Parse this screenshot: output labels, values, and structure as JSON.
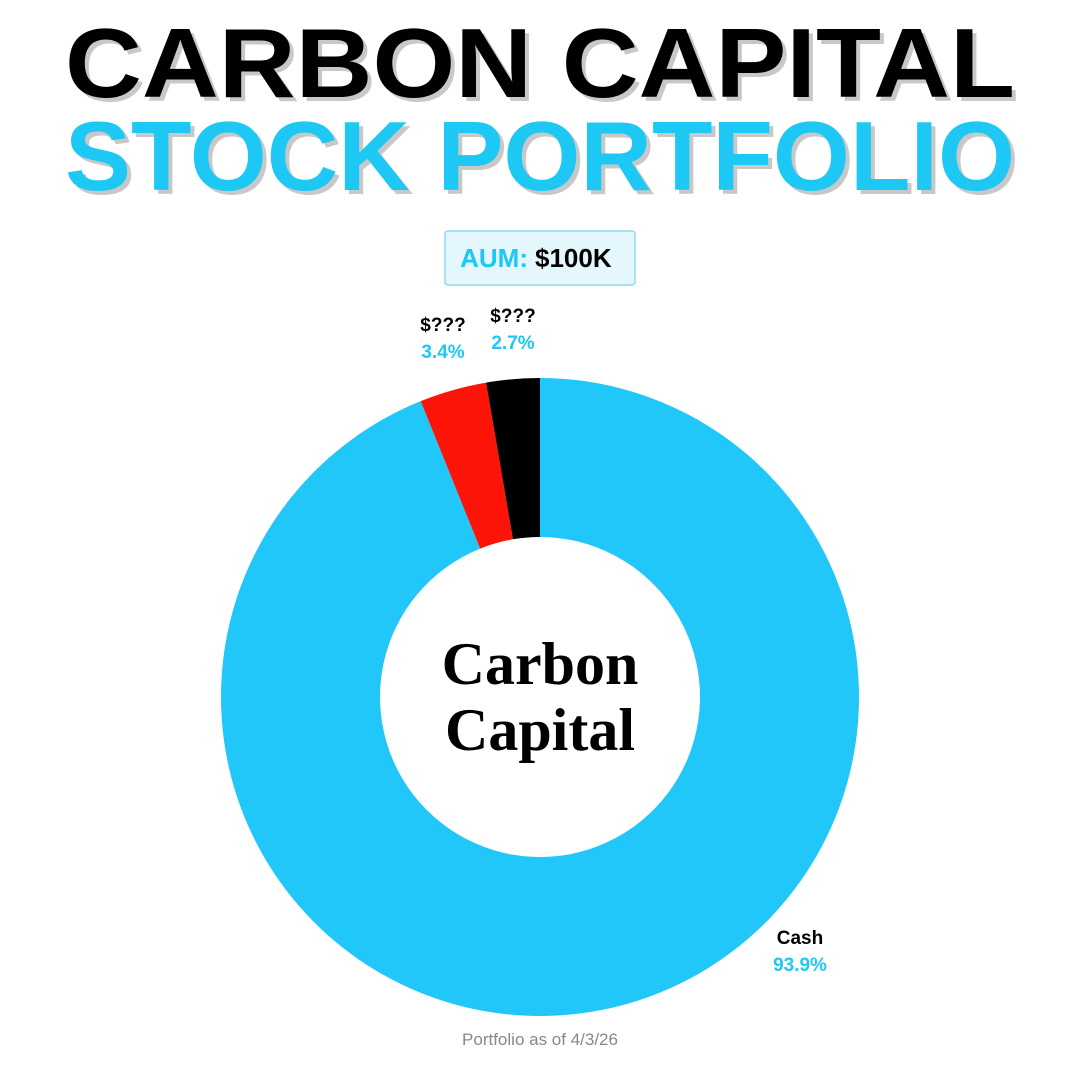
{
  "chart_data": {
    "type": "donut",
    "title": "CARBON CAPITAL",
    "subtitle": "STOCK PORTFOLIO",
    "aum_label": "AUM:",
    "aum_value": "$100K",
    "center_text": [
      "Carbon",
      "Capital"
    ],
    "categories": [
      "Cash",
      "$???",
      "$???"
    ],
    "values": [
      93.9,
      3.4,
      2.7
    ],
    "value_labels": [
      "93.9%",
      "3.4%",
      "2.7%"
    ],
    "colors": [
      "#22c7f9",
      "#fb1407",
      "#000000"
    ],
    "footnote": "Portfolio as of 4/3/26"
  }
}
